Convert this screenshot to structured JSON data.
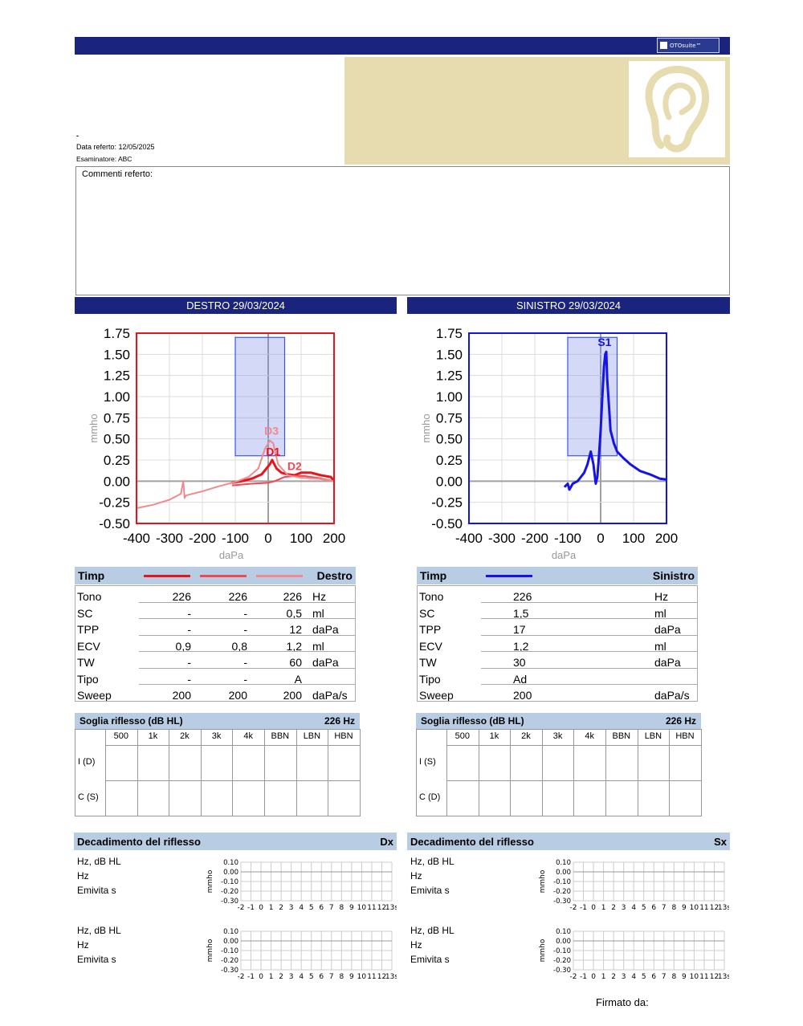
{
  "header": {
    "logo_text": "OTOsuite™"
  },
  "patient": {
    "dash": "-",
    "report_date": "Data referto: 12/05/2025",
    "examiner": "Esaminatore: ABC"
  },
  "comments": {
    "label": "Commenti referto:"
  },
  "right_ear": {
    "title": "DESTRO  29/03/2024"
  },
  "left_ear": {
    "title": "SINISTRO  29/03/2024"
  },
  "colors": {
    "navy": "#1a237e",
    "right_red": "#e8141b",
    "right_mid": "#ee4a52",
    "right_light": "#f08a8f",
    "left_blue": "#1414e6",
    "beige": "#e6dcb0",
    "table_header": "#b8cce4"
  },
  "chart_data": [
    {
      "type": "line",
      "name": "right-tympanogram",
      "xlabel": "daPa",
      "ylabel": "mmho",
      "xlim": [
        -400,
        200
      ],
      "ylim": [
        -0.5,
        1.75
      ],
      "xticks": [
        "-400",
        "-300",
        "-200",
        "-100",
        "0",
        "100",
        "200"
      ],
      "yticks": [
        "1.75",
        "1.50",
        "1.25",
        "1.00",
        "0.75",
        "0.50",
        "0.25",
        "0.00",
        "-0.25",
        "-0.50"
      ],
      "grid": true,
      "box": {
        "x": [
          -100,
          50
        ],
        "y": [
          0.3,
          1.7
        ]
      },
      "annotations": [
        {
          "text": "D1",
          "x": 15,
          "y": 0.3
        },
        {
          "text": "D2",
          "x": 80,
          "y": 0.13
        },
        {
          "text": "D3",
          "x": 10,
          "y": 0.55
        }
      ],
      "series": [
        {
          "name": "D1",
          "x": [
            -110,
            -80,
            -50,
            -20,
            -5,
            5,
            12,
            25,
            40,
            60,
            80,
            100,
            130,
            160,
            190,
            200
          ],
          "y": [
            -0.02,
            0.0,
            0.03,
            0.08,
            0.15,
            0.2,
            0.25,
            0.15,
            0.1,
            0.08,
            0.07,
            0.1,
            0.1,
            0.07,
            0.05,
            0.0
          ]
        },
        {
          "name": "D2",
          "x": [
            -110,
            -50,
            0,
            20,
            50,
            80,
            110,
            150,
            200
          ],
          "y": [
            -0.05,
            -0.03,
            -0.02,
            0.0,
            0.05,
            0.06,
            0.06,
            0.04,
            0.0
          ]
        },
        {
          "name": "D3",
          "x": [
            -400,
            -350,
            -300,
            -265,
            -258,
            -254,
            -250,
            -200,
            -150,
            -100,
            -60,
            -30,
            -10,
            5,
            15,
            30,
            60,
            100,
            150,
            200
          ],
          "y": [
            -0.32,
            -0.28,
            -0.22,
            -0.15,
            0.0,
            -0.2,
            -0.17,
            -0.12,
            -0.06,
            -0.01,
            0.05,
            0.15,
            0.38,
            0.48,
            0.45,
            0.2,
            0.07,
            0.04,
            0.03,
            0.0
          ]
        }
      ]
    },
    {
      "type": "line",
      "name": "left-tympanogram",
      "xlabel": "daPa",
      "ylabel": "mmho",
      "xlim": [
        -400,
        200
      ],
      "ylim": [
        -0.5,
        1.75
      ],
      "xticks": [
        "-400",
        "-300",
        "-200",
        "-100",
        "0",
        "100",
        "200"
      ],
      "yticks": [
        "1.75",
        "1.50",
        "1.25",
        "1.00",
        "0.75",
        "0.50",
        "0.25",
        "0.00",
        "-0.25",
        "-0.50"
      ],
      "grid": true,
      "box": {
        "x": [
          -100,
          50
        ],
        "y": [
          0.3,
          1.7
        ]
      },
      "annotations": [
        {
          "text": "S1",
          "x": 12,
          "y": 1.6
        }
      ],
      "series": [
        {
          "name": "S1",
          "x": [
            -110,
            -100,
            -95,
            -85,
            -70,
            -50,
            -40,
            -30,
            -22,
            -15,
            -10,
            -5,
            0,
            5,
            10,
            14,
            17,
            20,
            25,
            30,
            40,
            50,
            70,
            90,
            120,
            150,
            180,
            200
          ],
          "y": [
            -0.07,
            -0.03,
            -0.1,
            -0.03,
            0.0,
            0.1,
            0.2,
            0.35,
            0.2,
            -0.03,
            0.05,
            0.3,
            0.6,
            1.0,
            1.35,
            1.5,
            1.53,
            1.2,
            0.9,
            0.6,
            0.45,
            0.35,
            0.27,
            0.2,
            0.12,
            0.08,
            0.03,
            0.02
          ]
        }
      ]
    }
  ],
  "timp_right": {
    "title": "Timp",
    "side": "Destro",
    "rows": [
      {
        "label": "Tono",
        "v1": "226",
        "v2": "226",
        "v3": "226",
        "unit": "Hz"
      },
      {
        "label": "SC",
        "v1": "-",
        "v2": "-",
        "v3": "0,5",
        "unit": "ml"
      },
      {
        "label": "TPP",
        "v1": "-",
        "v2": "-",
        "v3": "12",
        "unit": "daPa"
      },
      {
        "label": "ECV",
        "v1": "0,9",
        "v2": "0,8",
        "v3": "1,2",
        "unit": "ml"
      },
      {
        "label": "TW",
        "v1": "-",
        "v2": "-",
        "v3": "60",
        "unit": "daPa"
      },
      {
        "label": "Tipo",
        "v1": "-",
        "v2": "-",
        "v3": "A",
        "unit": ""
      },
      {
        "label": "Sweep",
        "v1": "200",
        "v2": "200",
        "v3": "200",
        "unit": "daPa/s"
      }
    ]
  },
  "timp_left": {
    "title": "Timp",
    "side": "Sinistro",
    "rows": [
      {
        "label": "Tono",
        "v1": "226",
        "unit": "Hz"
      },
      {
        "label": "SC",
        "v1": "1,5",
        "unit": "ml"
      },
      {
        "label": "TPP",
        "v1": "17",
        "unit": "daPa"
      },
      {
        "label": "ECV",
        "v1": "1,2",
        "unit": "ml"
      },
      {
        "label": "TW",
        "v1": "30",
        "unit": "daPa"
      },
      {
        "label": "Tipo",
        "v1": "Ad",
        "unit": ""
      },
      {
        "label": "Sweep",
        "v1": "200",
        "unit": "daPa/s"
      }
    ]
  },
  "reflex_right": {
    "title": "Soglia riflesso (dB HL)",
    "freq": "226 Hz",
    "cols": [
      "500",
      "1k",
      "2k",
      "3k",
      "4k",
      "BBN",
      "LBN",
      "HBN"
    ],
    "rows": [
      "I (D)",
      "C (S)"
    ]
  },
  "reflex_left": {
    "title": "Soglia riflesso (dB HL)",
    "freq": "226 Hz",
    "cols": [
      "500",
      "1k",
      "2k",
      "3k",
      "4k",
      "BBN",
      "LBN",
      "HBN"
    ],
    "rows": [
      "I (S)",
      "C (D)"
    ]
  },
  "decay_right": {
    "title": "Decadimento del riflesso",
    "side": "Dx"
  },
  "decay_left": {
    "title": "Decadimento del riflesso",
    "side": "Sx"
  },
  "decay_common": {
    "line1": "Hz,  dB HL",
    "line2": "Hz",
    "line3": "Emivita  s",
    "ylabel": "mmho",
    "yticks": [
      "0.10",
      "0.00",
      "-0.10",
      "-0.20",
      "-0.30"
    ],
    "xticks": [
      "-2",
      "-1",
      "0",
      "1",
      "2",
      "3",
      "4",
      "5",
      "6",
      "7",
      "8",
      "9",
      "10",
      "11",
      "12",
      "13s"
    ]
  },
  "footer": {
    "signed_by": "Firmato da:"
  }
}
